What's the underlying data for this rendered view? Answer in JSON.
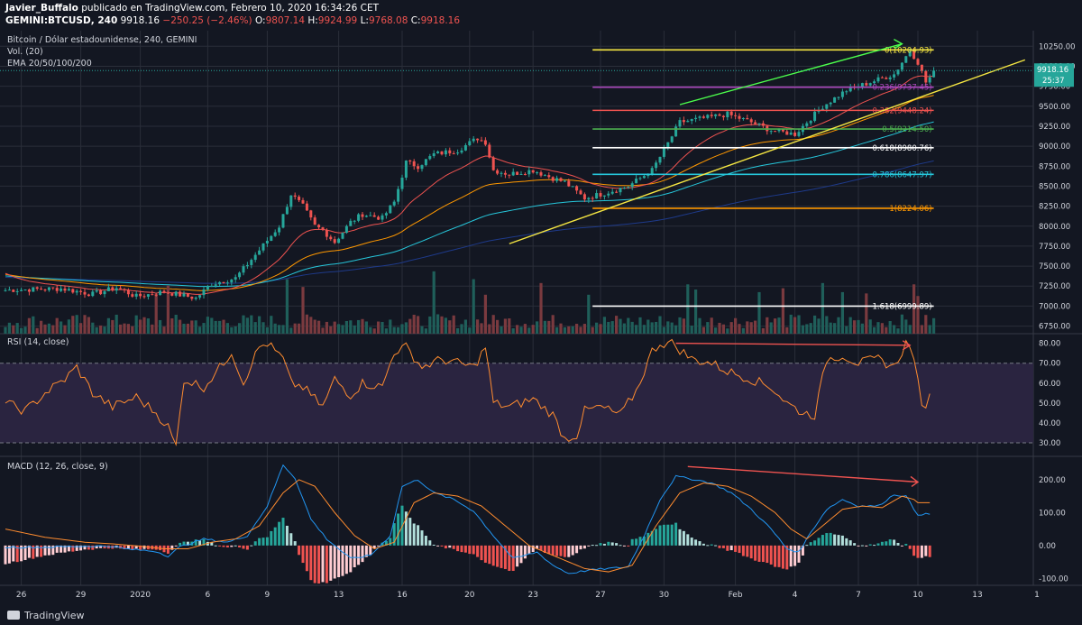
{
  "header": {
    "author": "Javier_Buffalo",
    "published_text": "publicado en TradingView.com, Febrero 10, 2020 16:34:26 CET",
    "symbol": "GEMINI:BTCUSD, 240",
    "last_price": "9918.16",
    "change": "−250.25 (−2.46%)",
    "o_label": "O:",
    "o": "9807.14",
    "h_label": "H:",
    "h": "9924.99",
    "l_label": "L:",
    "l": "9768.08",
    "c_label": "C:",
    "c": "9918.16"
  },
  "legend": {
    "title": "Bitcoin / Dólar estadounidense, 240, GEMINI",
    "vol": "Vol. (20)",
    "ema": "EMA 20/50/100/200"
  },
  "price_badge": {
    "price": "9918.16",
    "countdown": "25:37"
  },
  "colors": {
    "bg": "#131722",
    "grid": "#2a2e39",
    "text": "#d1d4dc",
    "up": "#26a69a",
    "down": "#ef5350",
    "rsi": "#ff8c2f",
    "rsi_band": "#2a2440",
    "macd": "#2196f3",
    "signal": "#ff8c2f",
    "ema20": "#ef5350",
    "ema50": "#ff9800",
    "ema100": "#26c6da",
    "ema200": "#1e3a8a"
  },
  "chart_data": [
    {
      "type": "candlestick",
      "title": "Bitcoin / Dólar estadounidense, 240, GEMINI",
      "x_ticks": [
        "26",
        "29",
        "2020",
        "6",
        "9",
        "13",
        "16",
        "20",
        "23",
        "27",
        "30",
        "Feb",
        "4",
        "7",
        "10",
        "13",
        "1"
      ],
      "ylim": [
        6700,
        10400
      ],
      "y_ticks": [
        "10250.00",
        "10000.00",
        "9750.00",
        "9500.00",
        "9250.00",
        "9000.00",
        "8750.00",
        "8500.00",
        "8250.00",
        "8000.00",
        "7750.00",
        "7500.00",
        "7250.00",
        "7000.00",
        "6750.00"
      ],
      "anchors": [
        [
          0,
          7200
        ],
        [
          14,
          7220
        ],
        [
          22,
          7150
        ],
        [
          28,
          7230
        ],
        [
          33,
          7120
        ],
        [
          40,
          7180
        ],
        [
          48,
          7100
        ],
        [
          52,
          7280
        ],
        [
          58,
          7350
        ],
        [
          64,
          7700
        ],
        [
          69,
          8000
        ],
        [
          72,
          8400
        ],
        [
          75,
          8250
        ],
        [
          78,
          8000
        ],
        [
          80,
          7950
        ],
        [
          83,
          7800
        ],
        [
          87,
          8050
        ],
        [
          90,
          8150
        ],
        [
          95,
          8100
        ],
        [
          98,
          8300
        ],
        [
          101,
          8800
        ],
        [
          104,
          8750
        ],
        [
          108,
          8900
        ],
        [
          114,
          8950
        ],
        [
          119,
          9100
        ],
        [
          121,
          9050
        ],
        [
          123,
          8700
        ],
        [
          127,
          8650
        ],
        [
          133,
          8700
        ],
        [
          138,
          8600
        ],
        [
          141,
          8550
        ],
        [
          146,
          8350
        ],
        [
          150,
          8400
        ],
        [
          157,
          8500
        ],
        [
          163,
          8700
        ],
        [
          166,
          8950
        ],
        [
          170,
          9300
        ],
        [
          176,
          9350
        ],
        [
          182,
          9400
        ],
        [
          188,
          9300
        ],
        [
          193,
          9200
        ],
        [
          199,
          9150
        ],
        [
          206,
          9500
        ],
        [
          212,
          9700
        ],
        [
          218,
          9800
        ],
        [
          224,
          9900
        ],
        [
          228,
          10200
        ],
        [
          230,
          10050
        ],
        [
          232,
          9800
        ],
        [
          234,
          9918
        ]
      ],
      "volume_spikes": [
        [
          38,
          320
        ],
        [
          41,
          370
        ],
        [
          71,
          420
        ],
        [
          75,
          360
        ],
        [
          108,
          480
        ],
        [
          118,
          420
        ],
        [
          121,
          300
        ],
        [
          135,
          390
        ],
        [
          147,
          300
        ],
        [
          172,
          380
        ],
        [
          174,
          340
        ],
        [
          190,
          320
        ],
        [
          196,
          350
        ],
        [
          206,
          390
        ],
        [
          211,
          320
        ],
        [
          217,
          310
        ],
        [
          229,
          380
        ],
        [
          230,
          290
        ]
      ],
      "fib_levels": [
        {
          "label": "0(10204.93)",
          "value": 10204.93,
          "color": "#f5e642"
        },
        {
          "label": "0.236(9737.45)",
          "value": 9737.45,
          "color": "#ab47bc"
        },
        {
          "label": "0.382(9448.24)",
          "value": 9448.24,
          "color": "#ef5350"
        },
        {
          "label": "0.5(9214.50)",
          "value": 9214.5,
          "color": "#4caf50"
        },
        {
          "label": "0.618(8980.76)",
          "value": 8980.76,
          "color": "#ffffff"
        },
        {
          "label": "0.786(8647.97)",
          "value": 8647.97,
          "color": "#26c6da"
        },
        {
          "label": "1(8224.06)",
          "value": 8224.06,
          "color": "#ff9800"
        },
        {
          "label": "1.618(6999.89)",
          "value": 6999.89,
          "color": "#ffffff"
        }
      ],
      "fib_bar_range": [
        148,
        234
      ],
      "trendlines": [
        {
          "name": "support",
          "color": "#f5e642",
          "points": [
            [
              127,
              7780
            ],
            [
              257,
              10080
            ]
          ]
        },
        {
          "name": "momentum",
          "color": "#4cff4c",
          "points": [
            [
              170,
              9520
            ],
            [
              226,
              10280
            ]
          ],
          "arrow": true
        }
      ]
    },
    {
      "type": "line",
      "title": "RSI (14, close)",
      "ylim": [
        25,
        83
      ],
      "y_ticks": [
        "80.00",
        "70.00",
        "60.00",
        "50.00",
        "40.00",
        "30.00"
      ],
      "bands": [
        30,
        70
      ],
      "anchors": [
        [
          0,
          50
        ],
        [
          5,
          46
        ],
        [
          10,
          55
        ],
        [
          15,
          62
        ],
        [
          18,
          68
        ],
        [
          22,
          55
        ],
        [
          27,
          48
        ],
        [
          33,
          53
        ],
        [
          38,
          45
        ],
        [
          41,
          38
        ],
        [
          43,
          28
        ],
        [
          45,
          62
        ],
        [
          50,
          58
        ],
        [
          55,
          70
        ],
        [
          57,
          76
        ],
        [
          60,
          60
        ],
        [
          62,
          70
        ],
        [
          64,
          78
        ],
        [
          66,
          80
        ],
        [
          70,
          72
        ],
        [
          72,
          60
        ],
        [
          75,
          58
        ],
        [
          80,
          48
        ],
        [
          83,
          62
        ],
        [
          87,
          54
        ],
        [
          90,
          60
        ],
        [
          95,
          58
        ],
        [
          98,
          76
        ],
        [
          101,
          78
        ],
        [
          105,
          68
        ],
        [
          110,
          72
        ],
        [
          114,
          70
        ],
        [
          118,
          68
        ],
        [
          121,
          78
        ],
        [
          123,
          50
        ],
        [
          127,
          48
        ],
        [
          133,
          52
        ],
        [
          138,
          44
        ],
        [
          141,
          32
        ],
        [
          144,
          34
        ],
        [
          146,
          46
        ],
        [
          150,
          48
        ],
        [
          155,
          44
        ],
        [
          159,
          56
        ],
        [
          163,
          76
        ],
        [
          165,
          80
        ],
        [
          168,
          80
        ],
        [
          173,
          72
        ],
        [
          178,
          70
        ],
        [
          182,
          66
        ],
        [
          188,
          62
        ],
        [
          193,
          58
        ],
        [
          197,
          50
        ],
        [
          201,
          45
        ],
        [
          204,
          44
        ],
        [
          207,
          72
        ],
        [
          211,
          74
        ],
        [
          215,
          70
        ],
        [
          220,
          72
        ],
        [
          224,
          68
        ],
        [
          227,
          80
        ],
        [
          229,
          74
        ],
        [
          230,
          60
        ],
        [
          231,
          47
        ],
        [
          233,
          53
        ]
      ],
      "divergence_arrow": {
        "color": "#ef5350",
        "points": [
          [
            169,
            80
          ],
          [
            228,
            79
          ]
        ]
      }
    },
    {
      "type": "line",
      "title": "MACD (12, 26, close, 9)",
      "ylim": [
        -110,
        260
      ],
      "y_ticks": [
        "200.00",
        "100.00",
        "0.00",
        "-100.00"
      ],
      "macd_anchors": [
        [
          0,
          -5
        ],
        [
          10,
          -5
        ],
        [
          20,
          -2
        ],
        [
          27,
          -2
        ],
        [
          30,
          -10
        ],
        [
          34,
          -14
        ],
        [
          38,
          -18
        ],
        [
          41,
          -32
        ],
        [
          44,
          -4
        ],
        [
          50,
          20
        ],
        [
          56,
          10
        ],
        [
          61,
          30
        ],
        [
          66,
          120
        ],
        [
          70,
          245
        ],
        [
          73,
          205
        ],
        [
          77,
          80
        ],
        [
          81,
          20
        ],
        [
          87,
          -40
        ],
        [
          92,
          -30
        ],
        [
          97,
          30
        ],
        [
          100,
          180
        ],
        [
          104,
          200
        ],
        [
          108,
          160
        ],
        [
          113,
          140
        ],
        [
          118,
          105
        ],
        [
          123,
          30
        ],
        [
          128,
          -40
        ],
        [
          134,
          -20
        ],
        [
          138,
          -60
        ],
        [
          142,
          -85
        ],
        [
          147,
          -75
        ],
        [
          152,
          -70
        ],
        [
          157,
          -65
        ],
        [
          161,
          30
        ],
        [
          165,
          140
        ],
        [
          169,
          210
        ],
        [
          174,
          200
        ],
        [
          178,
          190
        ],
        [
          183,
          160
        ],
        [
          188,
          110
        ],
        [
          193,
          50
        ],
        [
          197,
          -10
        ],
        [
          200,
          -20
        ],
        [
          203,
          40
        ],
        [
          207,
          110
        ],
        [
          211,
          140
        ],
        [
          215,
          120
        ],
        [
          220,
          120
        ],
        [
          224,
          155
        ],
        [
          227,
          150
        ],
        [
          229,
          110
        ],
        [
          230,
          95
        ]
      ],
      "signal_anchors": [
        [
          0,
          50
        ],
        [
          10,
          25
        ],
        [
          20,
          10
        ],
        [
          27,
          5
        ],
        [
          34,
          -2
        ],
        [
          40,
          -10
        ],
        [
          46,
          -10
        ],
        [
          52,
          10
        ],
        [
          58,
          20
        ],
        [
          64,
          60
        ],
        [
          70,
          160
        ],
        [
          74,
          200
        ],
        [
          78,
          180
        ],
        [
          83,
          100
        ],
        [
          88,
          30
        ],
        [
          93,
          -10
        ],
        [
          98,
          10
        ],
        [
          103,
          130
        ],
        [
          108,
          160
        ],
        [
          114,
          150
        ],
        [
          120,
          120
        ],
        [
          126,
          60
        ],
        [
          132,
          0
        ],
        [
          140,
          -40
        ],
        [
          146,
          -70
        ],
        [
          152,
          -80
        ],
        [
          158,
          -60
        ],
        [
          164,
          60
        ],
        [
          170,
          160
        ],
        [
          176,
          190
        ],
        [
          182,
          180
        ],
        [
          188,
          150
        ],
        [
          194,
          100
        ],
        [
          198,
          50
        ],
        [
          202,
          20
        ],
        [
          206,
          60
        ],
        [
          211,
          110
        ],
        [
          216,
          120
        ],
        [
          221,
          115
        ],
        [
          226,
          150
        ],
        [
          229,
          140
        ],
        [
          230,
          130
        ]
      ],
      "divergence_arrow": {
        "color": "#ef5350",
        "points": [
          [
            172,
            240
          ],
          [
            230,
            193
          ]
        ]
      }
    }
  ]
}
